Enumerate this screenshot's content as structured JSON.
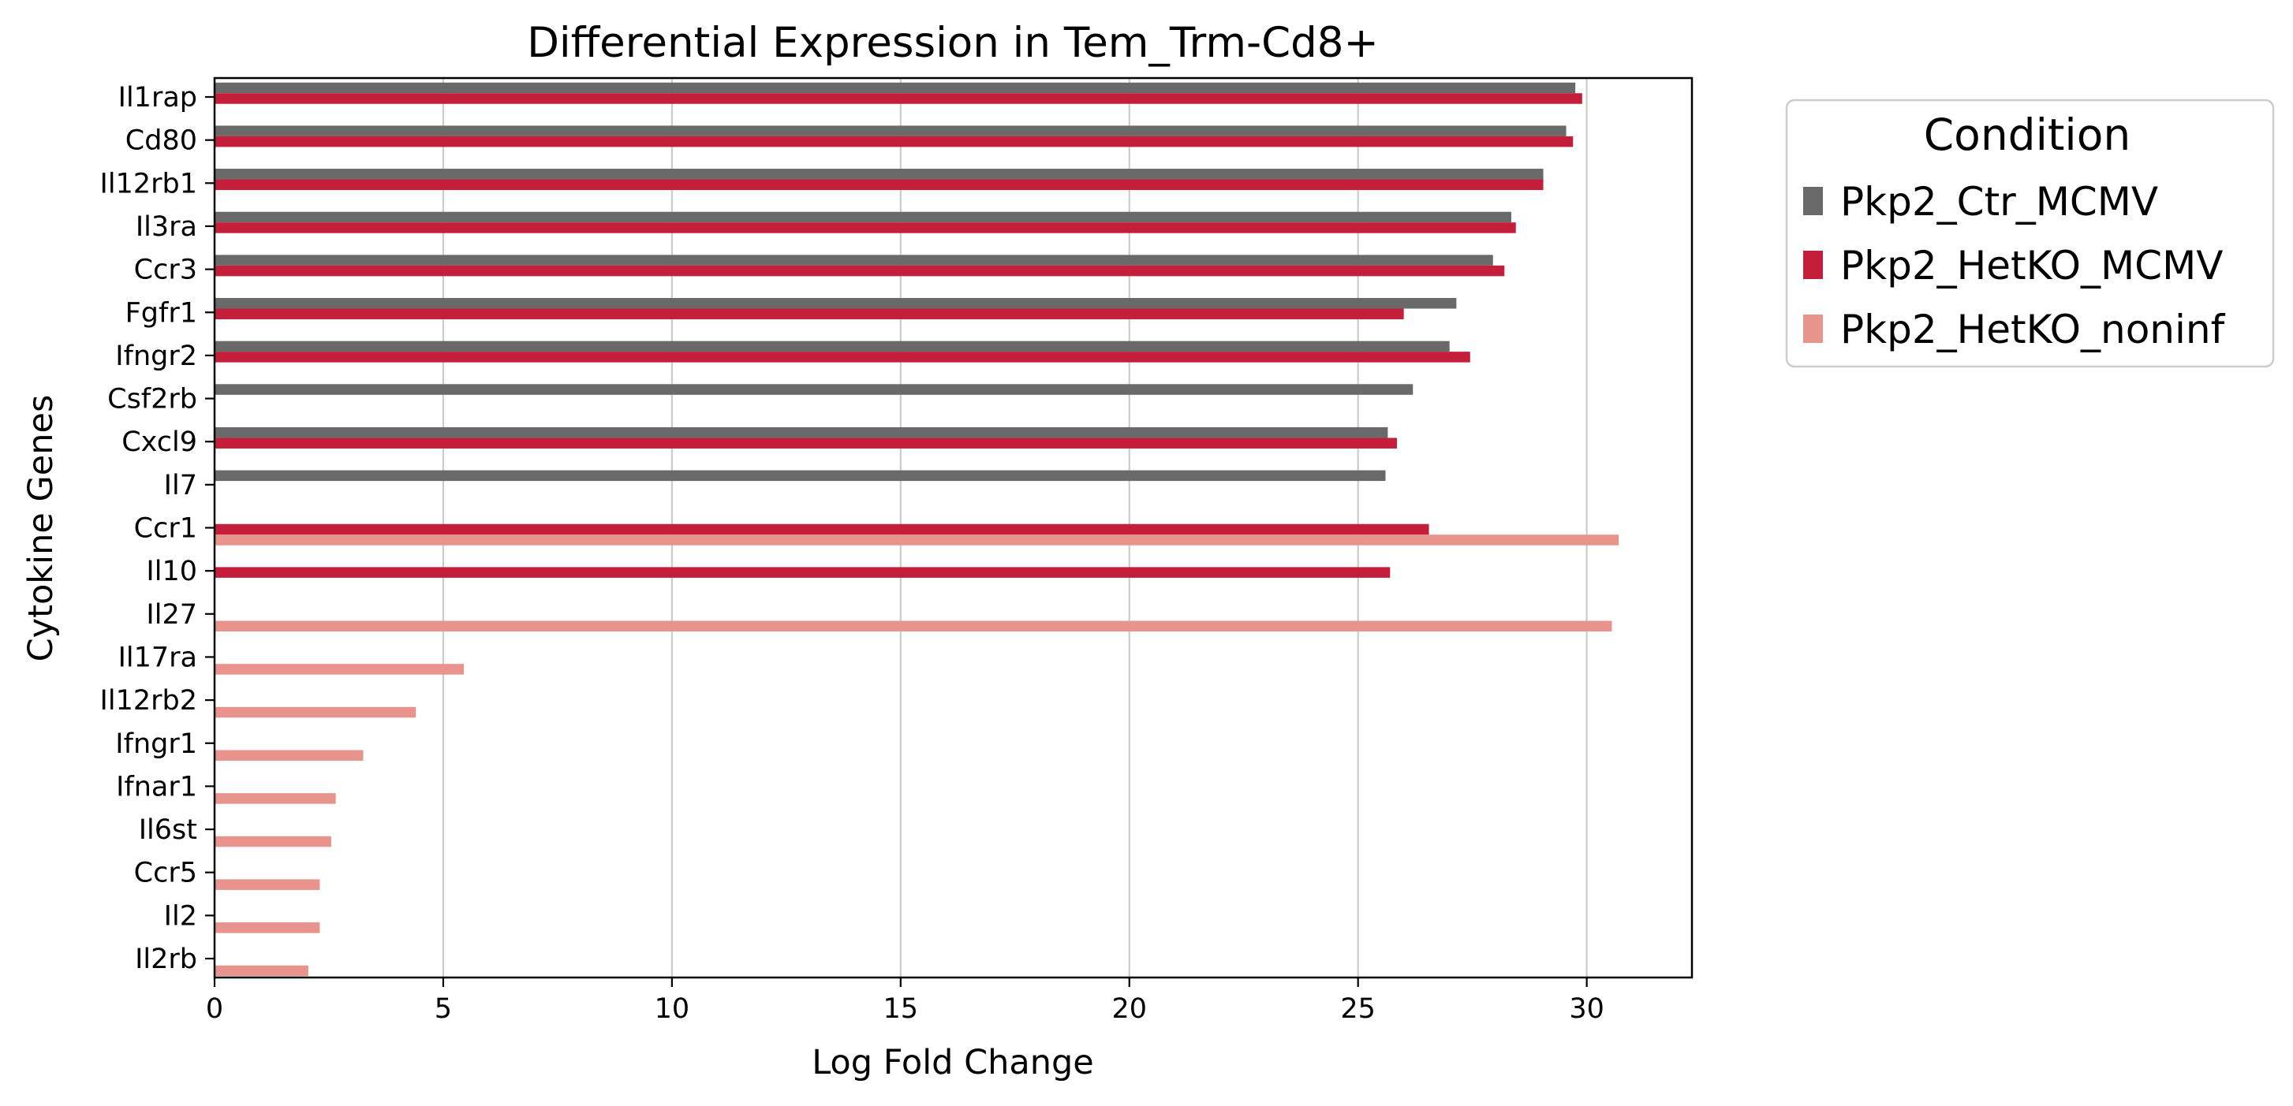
{
  "chart_data": {
    "type": "bar",
    "orientation": "horizontal",
    "title": "Differential Expression in Tem_Trm-Cd8+",
    "xlabel": "Log Fold Change",
    "ylabel": "Cytokine Genes",
    "xlim": [
      0,
      32.3
    ],
    "x_ticks": [
      "0",
      "5",
      "10",
      "15",
      "20",
      "25",
      "30"
    ],
    "x_tick_values": [
      0,
      5,
      10,
      15,
      20,
      25,
      30
    ],
    "grid": "vertical",
    "legend_position": "outside right, top",
    "legend_title": "Condition",
    "categories": [
      "Il1rap",
      "Cd80",
      "Il12rb1",
      "Il3ra",
      "Ccr3",
      "Fgfr1",
      "Ifngr2",
      "Csf2rb",
      "Cxcl9",
      "Il7",
      "Ccr1",
      "Il10",
      "Il27",
      "Il17ra",
      "Il12rb2",
      "Ifngr1",
      "Ifnar1",
      "Il6st",
      "Ccr5",
      "Il2",
      "Il2rb"
    ],
    "series": [
      {
        "name": "Pkp2_Ctr_MCMV",
        "color": "#696969",
        "values": [
          29.75,
          29.55,
          29.05,
          28.35,
          27.95,
          27.15,
          27.0,
          26.2,
          25.65,
          25.6,
          null,
          null,
          null,
          null,
          null,
          null,
          null,
          null,
          null,
          null,
          null
        ]
      },
      {
        "name": "Pkp2_HetKO_MCMV",
        "color": "#c41e3a",
        "values": [
          29.9,
          29.7,
          29.05,
          28.45,
          28.2,
          26.0,
          27.45,
          null,
          25.85,
          null,
          26.55,
          25.7,
          null,
          null,
          null,
          null,
          null,
          null,
          null,
          null,
          null
        ]
      },
      {
        "name": "Pkp2_HetKO_noninf",
        "color": "#e8938c",
        "values": [
          null,
          null,
          null,
          null,
          null,
          null,
          null,
          null,
          null,
          null,
          30.7,
          null,
          30.55,
          5.45,
          4.4,
          3.25,
          2.65,
          2.55,
          2.3,
          2.3,
          2.05
        ]
      }
    ]
  }
}
